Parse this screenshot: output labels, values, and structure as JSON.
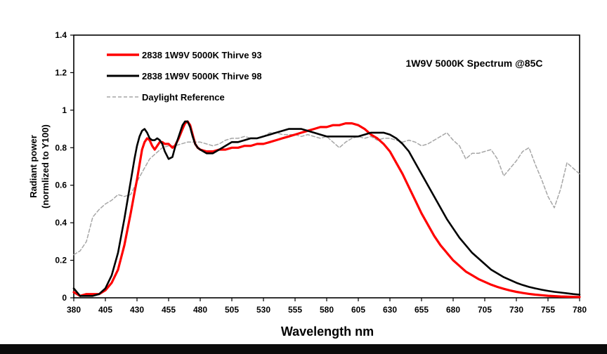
{
  "chart_data": {
    "type": "line",
    "title": "1W9V 5000K Spectrum @85C",
    "xlabel": "Wavelength nm",
    "ylabel_line1": "Radiant power",
    "ylabel_line2": "(normlized to Y100)",
    "xlim": [
      380,
      780
    ],
    "ylim": [
      0,
      1.4
    ],
    "x_ticks": [
      380,
      405,
      430,
      455,
      480,
      505,
      530,
      555,
      580,
      605,
      630,
      655,
      680,
      705,
      730,
      755,
      780
    ],
    "y_ticks": [
      0,
      0.2,
      0.4,
      0.6,
      0.8,
      1,
      1.2,
      1.4
    ],
    "y_tick_labels": [
      "0",
      "0.2",
      "0.4",
      "0.6",
      "0.8",
      "1",
      "1.2",
      "1.4"
    ],
    "grid": false,
    "legend_position": "top-left",
    "series": [
      {
        "name": "2838 1W9V 5000K Thirve 93",
        "color": "#ff0000",
        "style": "solid",
        "x": [
          380,
          385,
          390,
          395,
          400,
          405,
          410,
          415,
          420,
          425,
          428,
          430,
          432,
          434,
          436,
          438,
          440,
          442,
          444,
          446,
          448,
          450,
          452,
          455,
          458,
          460,
          463,
          466,
          468,
          470,
          472,
          474,
          476,
          478,
          480,
          485,
          490,
          495,
          500,
          505,
          510,
          515,
          520,
          525,
          530,
          535,
          540,
          545,
          550,
          555,
          560,
          565,
          570,
          575,
          580,
          585,
          590,
          595,
          600,
          605,
          610,
          615,
          620,
          625,
          630,
          635,
          640,
          645,
          650,
          655,
          660,
          665,
          670,
          675,
          680,
          685,
          690,
          695,
          700,
          705,
          710,
          715,
          720,
          725,
          730,
          735,
          740,
          745,
          750,
          755,
          760,
          765,
          770,
          775,
          780
        ],
        "values": [
          0.03,
          0.01,
          0.02,
          0.02,
          0.02,
          0.04,
          0.08,
          0.15,
          0.28,
          0.45,
          0.56,
          0.63,
          0.71,
          0.79,
          0.83,
          0.85,
          0.84,
          0.81,
          0.79,
          0.81,
          0.83,
          0.83,
          0.82,
          0.82,
          0.8,
          0.81,
          0.85,
          0.9,
          0.93,
          0.94,
          0.92,
          0.87,
          0.82,
          0.8,
          0.79,
          0.78,
          0.78,
          0.79,
          0.79,
          0.8,
          0.8,
          0.81,
          0.81,
          0.82,
          0.82,
          0.83,
          0.84,
          0.85,
          0.86,
          0.87,
          0.88,
          0.89,
          0.9,
          0.91,
          0.91,
          0.92,
          0.92,
          0.93,
          0.93,
          0.92,
          0.9,
          0.87,
          0.85,
          0.82,
          0.78,
          0.72,
          0.66,
          0.59,
          0.52,
          0.45,
          0.39,
          0.33,
          0.28,
          0.24,
          0.2,
          0.17,
          0.14,
          0.12,
          0.1,
          0.085,
          0.07,
          0.058,
          0.048,
          0.039,
          0.032,
          0.026,
          0.021,
          0.017,
          0.014,
          0.011,
          0.009,
          0.007,
          0.006,
          0.005,
          0.004
        ]
      },
      {
        "name": "2838 1W9V 5000K Thirve 98",
        "color": "#000000",
        "style": "solid",
        "x": [
          380,
          385,
          390,
          395,
          400,
          405,
          410,
          415,
          420,
          425,
          428,
          430,
          432,
          434,
          436,
          438,
          440,
          442,
          444,
          446,
          448,
          450,
          452,
          455,
          458,
          460,
          463,
          466,
          468,
          470,
          472,
          474,
          476,
          478,
          480,
          485,
          490,
          495,
          500,
          505,
          510,
          515,
          520,
          525,
          530,
          535,
          540,
          545,
          550,
          555,
          560,
          565,
          570,
          575,
          580,
          585,
          590,
          595,
          600,
          605,
          610,
          615,
          620,
          625,
          630,
          635,
          640,
          645,
          650,
          655,
          660,
          665,
          670,
          675,
          680,
          685,
          690,
          695,
          700,
          705,
          710,
          715,
          720,
          725,
          730,
          735,
          740,
          745,
          750,
          755,
          760,
          765,
          770,
          775,
          780
        ],
        "values": [
          0.05,
          0.01,
          0.01,
          0.01,
          0.02,
          0.05,
          0.12,
          0.24,
          0.42,
          0.62,
          0.74,
          0.81,
          0.86,
          0.89,
          0.9,
          0.88,
          0.85,
          0.84,
          0.84,
          0.85,
          0.84,
          0.82,
          0.78,
          0.74,
          0.75,
          0.8,
          0.86,
          0.92,
          0.94,
          0.94,
          0.91,
          0.86,
          0.82,
          0.8,
          0.79,
          0.77,
          0.77,
          0.79,
          0.81,
          0.83,
          0.83,
          0.84,
          0.85,
          0.85,
          0.86,
          0.87,
          0.88,
          0.89,
          0.9,
          0.9,
          0.9,
          0.89,
          0.88,
          0.87,
          0.86,
          0.86,
          0.86,
          0.86,
          0.86,
          0.86,
          0.87,
          0.88,
          0.88,
          0.88,
          0.87,
          0.85,
          0.82,
          0.78,
          0.72,
          0.66,
          0.6,
          0.54,
          0.48,
          0.42,
          0.37,
          0.32,
          0.28,
          0.24,
          0.21,
          0.18,
          0.15,
          0.13,
          0.11,
          0.095,
          0.08,
          0.068,
          0.058,
          0.05,
          0.043,
          0.037,
          0.032,
          0.028,
          0.024,
          0.02,
          0.017
        ]
      },
      {
        "name": "Daylight Reference",
        "color": "#a6a6a6",
        "style": "dashed",
        "x": [
          380,
          385,
          390,
          395,
          400,
          405,
          410,
          415,
          420,
          425,
          430,
          435,
          440,
          445,
          450,
          455,
          460,
          465,
          470,
          475,
          480,
          485,
          490,
          495,
          500,
          505,
          510,
          515,
          520,
          525,
          530,
          535,
          540,
          545,
          550,
          555,
          560,
          565,
          570,
          575,
          580,
          585,
          590,
          595,
          600,
          605,
          610,
          615,
          620,
          625,
          630,
          635,
          640,
          645,
          650,
          655,
          660,
          665,
          670,
          675,
          680,
          685,
          690,
          695,
          700,
          705,
          710,
          715,
          720,
          725,
          730,
          735,
          740,
          745,
          750,
          755,
          760,
          765,
          770,
          775,
          780
        ],
        "values": [
          0.23,
          0.25,
          0.3,
          0.43,
          0.47,
          0.5,
          0.52,
          0.55,
          0.54,
          0.55,
          0.62,
          0.68,
          0.74,
          0.77,
          0.8,
          0.81,
          0.81,
          0.82,
          0.83,
          0.83,
          0.83,
          0.82,
          0.81,
          0.82,
          0.84,
          0.85,
          0.85,
          0.86,
          0.85,
          0.85,
          0.86,
          0.88,
          0.88,
          0.87,
          0.87,
          0.87,
          0.86,
          0.87,
          0.86,
          0.85,
          0.86,
          0.83,
          0.8,
          0.83,
          0.85,
          0.86,
          0.85,
          0.86,
          0.84,
          0.85,
          0.85,
          0.84,
          0.83,
          0.84,
          0.83,
          0.81,
          0.82,
          0.84,
          0.86,
          0.88,
          0.84,
          0.81,
          0.74,
          0.77,
          0.77,
          0.78,
          0.79,
          0.74,
          0.65,
          0.69,
          0.73,
          0.78,
          0.8,
          0.71,
          0.63,
          0.54,
          0.48,
          0.58,
          0.72,
          0.69,
          0.66
        ]
      }
    ]
  }
}
